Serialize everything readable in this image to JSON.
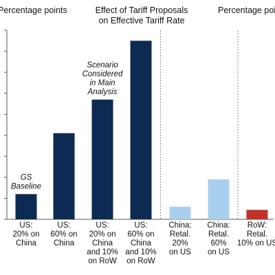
{
  "chart_data": {
    "type": "bar",
    "title": [
      "Effect of Tariff Proposals",
      "on Effective Tariff Rate"
    ],
    "ylabel_left": "Percentage points",
    "ylabel_right": "Percentage poi",
    "ylim": [
      0,
      9
    ],
    "ytick_step": 1,
    "categories": [
      [
        "US:",
        "20% on",
        "China"
      ],
      [
        "US:",
        "60% on",
        "China"
      ],
      [
        "US:",
        "20% on",
        "China",
        "and 10%",
        "on RoW"
      ],
      [
        "US:",
        "60% on",
        "China",
        "and 10%",
        "on RoW"
      ],
      [
        "China:",
        "Retal.",
        "20%",
        "on US"
      ],
      [
        "China:",
        "Retal.",
        "60%",
        "on US"
      ],
      [
        "RoW:",
        "Retal.",
        "10% on US"
      ]
    ],
    "values": [
      1.2,
      4.1,
      5.7,
      8.5,
      0.6,
      1.9,
      0.45
    ],
    "colors": [
      "#0d2b52",
      "#0d2b52",
      "#0d2b52",
      "#0d2b52",
      "#a9cfee",
      "#a9cfee",
      "#c0322b"
    ],
    "annotations": [
      {
        "bar": 0,
        "lines": [
          "GS",
          "Baseline"
        ]
      },
      {
        "bar": 2,
        "lines": [
          "Scenario",
          "Considered",
          "in Main",
          "Analysis"
        ]
      }
    ],
    "separators_after": [
      3,
      5
    ],
    "grid": false,
    "legend": "none"
  }
}
